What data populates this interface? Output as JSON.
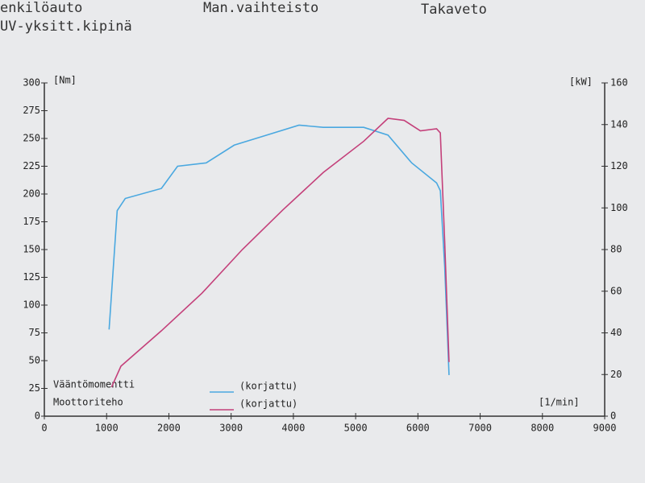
{
  "chart_data": {
    "type": "line",
    "header_texts": [
      "enkilöauto",
      "Man.vaihteisto",
      "Takaveto",
      "UV-yksitt.kipinä"
    ],
    "ylabel": "[Nm]",
    "y2label": "[kW]",
    "xlabel": "[1/min]",
    "xlim": [
      0,
      9000
    ],
    "xticks": [
      0,
      1000,
      2000,
      3000,
      4000,
      5000,
      6000,
      7000,
      8000,
      9000
    ],
    "ylim": [
      0,
      300
    ],
    "yticks": [
      0,
      25,
      50,
      75,
      100,
      125,
      150,
      175,
      200,
      225,
      250,
      275,
      300
    ],
    "y2lim": [
      0,
      160
    ],
    "y2ticks": [
      0,
      20,
      40,
      60,
      80,
      100,
      120,
      140,
      160
    ],
    "series": [
      {
        "name": "Vääntömomentti",
        "legend_note": "(korjattu)",
        "color": "#4aa8e0",
        "x": [
          1040,
          1170,
          1300,
          1880,
          2140,
          2600,
          3050,
          3570,
          4090,
          4480,
          5130,
          5520,
          5900,
          6300,
          6360,
          6430,
          6500
        ],
        "values": [
          78,
          185,
          196,
          205,
          225,
          228,
          244,
          253,
          262,
          260,
          260,
          253,
          228,
          210,
          203,
          135,
          37
        ]
      },
      {
        "name": "Moottoriteho",
        "legend_note": "(korjattu)",
        "color": "#c4407a",
        "axis": "y2",
        "x": [
          1080,
          1230,
          1880,
          2530,
          3180,
          3830,
          4480,
          5130,
          5520,
          5780,
          6040,
          6300,
          6360,
          6430,
          6500
        ],
        "values": [
          14,
          24,
          41,
          59,
          80,
          99,
          117,
          132,
          143,
          142,
          137,
          138,
          136,
          84,
          26
        ]
      }
    ]
  }
}
